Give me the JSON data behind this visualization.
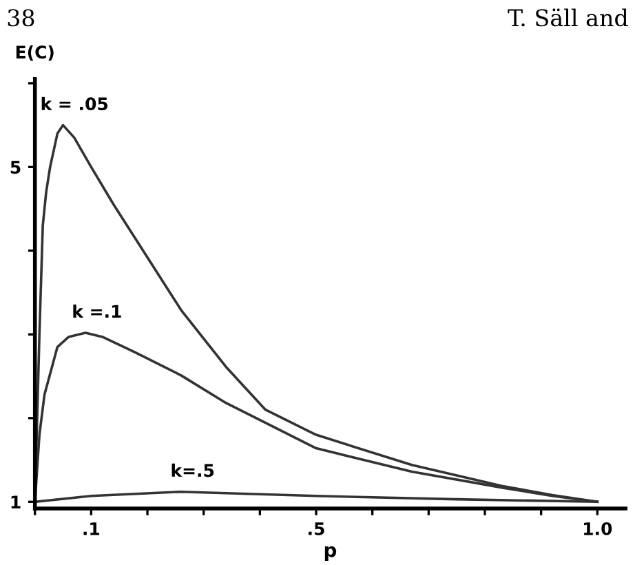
{
  "chart_data": {
    "type": "line",
    "xlabel": "p",
    "ylabel": "E(C)",
    "annotations": [
      "38",
      "T. Säll and"
    ],
    "xlim": [
      0,
      1.05
    ],
    "ylim": [
      0.92,
      6.05
    ],
    "xticks": [
      {
        "value": 0,
        "label": null
      },
      {
        "value": 0.1,
        "label": ".1"
      },
      {
        "value": 0.2,
        "label": null
      },
      {
        "value": 0.3,
        "label": null
      },
      {
        "value": 0.4,
        "label": null
      },
      {
        "value": 0.5,
        "label": ".5"
      },
      {
        "value": 0.6,
        "label": null
      },
      {
        "value": 0.7,
        "label": null
      },
      {
        "value": 0.8,
        "label": null
      },
      {
        "value": 0.9,
        "label": null
      },
      {
        "value": 1.0,
        "label": "1.0"
      }
    ],
    "yticks": [
      1,
      {
        "value": 2,
        "label": null
      },
      {
        "value": 3,
        "label": null
      },
      {
        "value": 4,
        "label": null
      },
      5,
      {
        "value": 6,
        "label": null
      }
    ],
    "grid": false,
    "legend": false,
    "marker": "none",
    "line_style": "solid",
    "series": [
      {
        "name": "k = .05",
        "color": "#333333",
        "x": [
          0.0,
          0.008,
          0.014,
          0.02,
          0.027,
          0.04,
          0.05,
          0.07,
          0.1,
          0.14,
          0.18,
          0.26,
          0.34,
          0.41,
          0.5,
          0.67,
          0.83,
          0.92,
          1.0
        ],
        "values": [
          1.0,
          3.0,
          4.3,
          4.7,
          5.0,
          5.4,
          5.5,
          5.35,
          5.0,
          4.55,
          4.13,
          3.29,
          2.61,
          2.1,
          1.8,
          1.44,
          1.19,
          1.08,
          1.0
        ]
      },
      {
        "name": "k =.1",
        "color": "#333333",
        "x": [
          0.0,
          0.008,
          0.017,
          0.04,
          0.06,
          0.09,
          0.12,
          0.18,
          0.26,
          0.34,
          0.5,
          0.67,
          0.83,
          0.92,
          1.0
        ],
        "values": [
          1.0,
          1.8,
          2.28,
          2.85,
          2.97,
          3.02,
          2.97,
          2.78,
          2.51,
          2.18,
          1.64,
          1.36,
          1.17,
          1.07,
          1.0
        ]
      },
      {
        "name": "k=.5",
        "color": "#333333",
        "x": [
          0.0,
          0.1,
          0.26,
          0.5,
          0.75,
          1.0
        ],
        "values": [
          1.0,
          1.07,
          1.12,
          1.07,
          1.03,
          1.0
        ]
      }
    ]
  }
}
